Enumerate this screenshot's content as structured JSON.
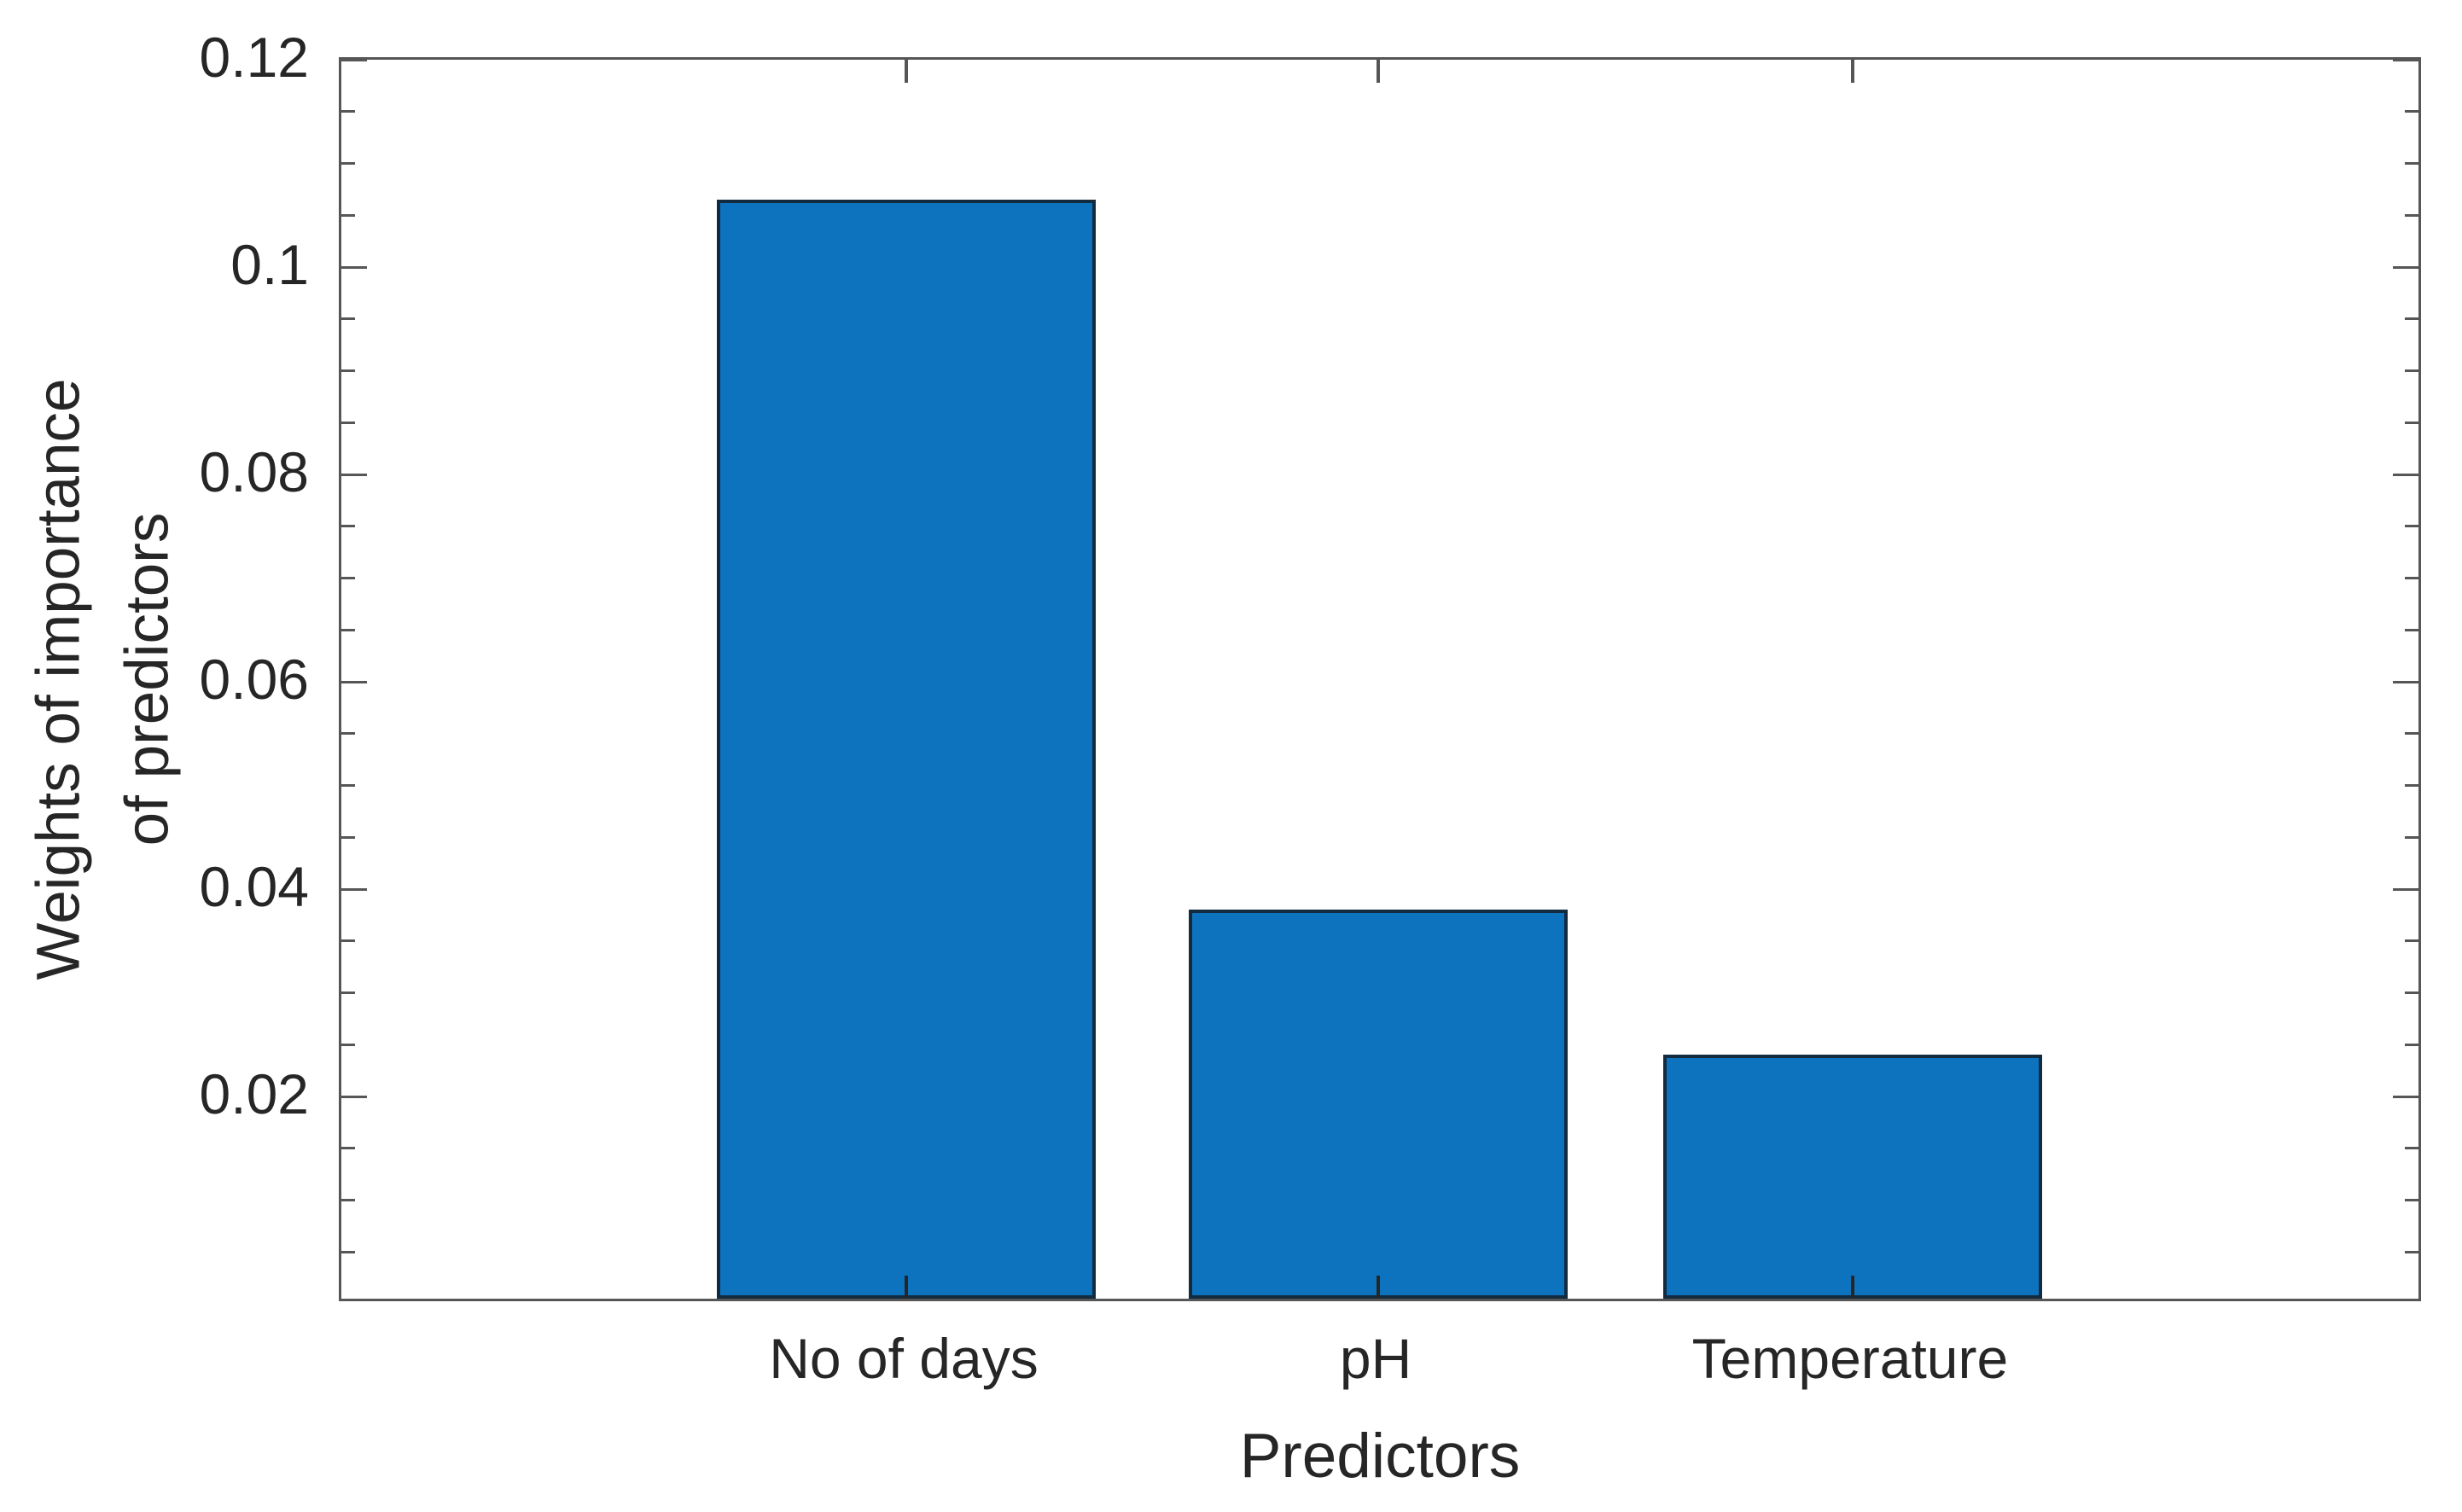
{
  "chart_data": {
    "type": "bar",
    "title": "",
    "xlabel": "Predictors",
    "ylabel": "Weights of importance of predictors",
    "ylabel_lines": [
      "Weights of importance",
      "of predictors"
    ],
    "categories": [
      "No of days",
      "pH",
      "Temperature"
    ],
    "values": [
      0.106,
      0.0375,
      0.0235
    ],
    "ylim": [
      0,
      0.12
    ],
    "ytick_values": [
      0.02,
      0.04,
      0.06,
      0.08,
      0.1,
      0.12
    ],
    "ytick_labels": [
      "0.02",
      "0.04",
      "0.06",
      "0.08",
      "0.1",
      "0.12"
    ],
    "yminor_tick_step": 0.005,
    "bar_width_ratio": 0.8,
    "grid": false,
    "legend": "none",
    "colors": {
      "bar_fill": "#0d73bf",
      "bar_edge": "#132b3f",
      "axis": "#565656",
      "category_tick": "#262626",
      "text": "#262626"
    }
  }
}
